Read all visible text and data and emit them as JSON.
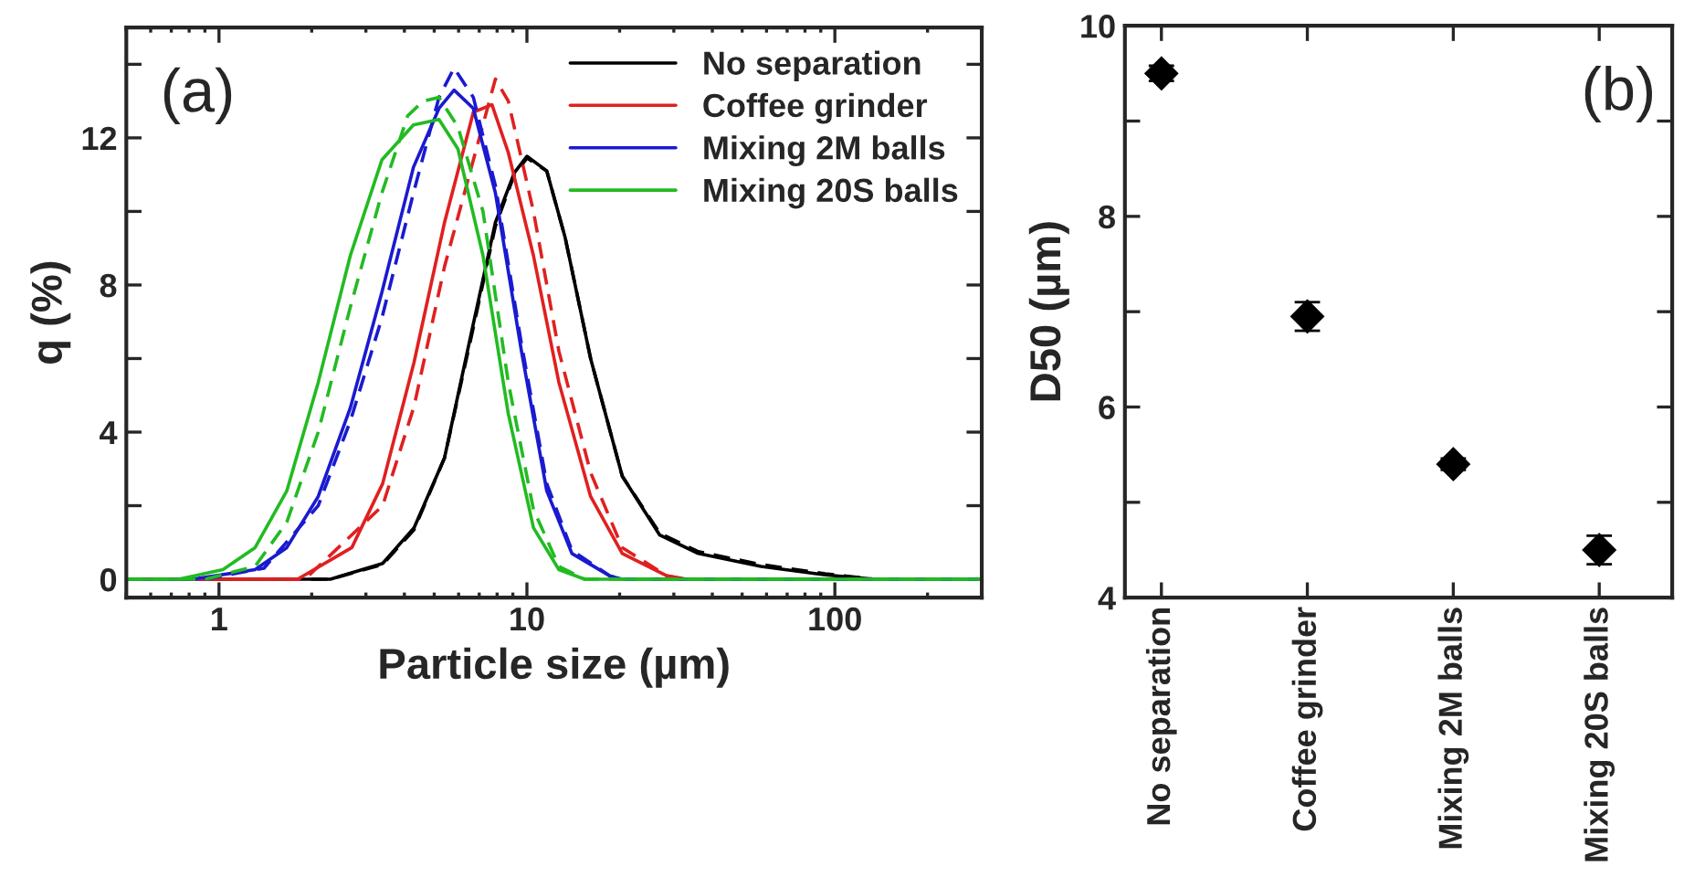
{
  "chart_data": [
    {
      "type": "line",
      "xlabel": "Particle size (µm)",
      "ylabel": "q (%)",
      "log": "x",
      "xlim": [
        0.5,
        300
      ],
      "xticks": [
        1,
        10,
        100
      ],
      "ylim": [
        -0.5,
        15
      ],
      "yticks": [
        0,
        {
          "value": 2,
          "label": null
        },
        4,
        {
          "value": 6,
          "label": null
        },
        8,
        {
          "value": 10,
          "label": null
        },
        12,
        {
          "value": 14,
          "label": null
        }
      ],
      "legend": "top right",
      "annotations": [
        "(a)"
      ],
      "line_style": "solid",
      "series": [
        {
          "name": "No separation",
          "color": "#000000",
          "x": [
            0.5,
            2.3,
            3.4,
            4.3,
            5.4,
            6.6,
            7.9,
            9.1,
            10,
            11.6,
            13.3,
            16.1,
            20.4,
            27,
            36,
            57.6,
            93,
            135,
            300
          ],
          "values": [
            0,
            0,
            0.43,
            1.4,
            3.3,
            6.7,
            9.7,
            11.05,
            11.5,
            11.1,
            9.3,
            6.0,
            2.8,
            1.2,
            0.7,
            0.35,
            0.12,
            0,
            0
          ]
        },
        {
          "color": "#000000",
          "line_style": "dashed",
          "x": [
            0.5,
            2.3,
            3.4,
            4.3,
            5.4,
            6.6,
            7.9,
            9.1,
            10,
            11.6,
            13.3,
            16.1,
            20.4,
            27,
            36,
            57.6,
            93,
            135,
            300
          ],
          "values": [
            0,
            0,
            0.4,
            1.35,
            3.3,
            6.6,
            9.6,
            11.0,
            11.45,
            11.1,
            9.3,
            6.0,
            2.8,
            1.25,
            0.75,
            0.4,
            0.15,
            0,
            0
          ]
        },
        {
          "name": "Coffee grinder",
          "color": "#e02020",
          "x": [
            0.5,
            1.8,
            2.7,
            3.4,
            4.3,
            5.4,
            6.7,
            7.7,
            8.7,
            10.5,
            12.7,
            16.1,
            20.4,
            28.5,
            33,
            300
          ],
          "values": [
            0,
            0,
            0.86,
            2.6,
            5.9,
            9.7,
            12.7,
            12.9,
            11.6,
            8.8,
            5.35,
            2.25,
            0.7,
            0.09,
            0,
            0
          ]
        },
        {
          "color": "#e02020",
          "line_style": "dashed",
          "x": [
            0.5,
            1.9,
            3.4,
            4.3,
            5.4,
            6.7,
            7.9,
            8.7,
            10.5,
            12.7,
            16.1,
            20.4,
            28.5,
            33,
            300
          ],
          "values": [
            0,
            0,
            2.0,
            4.7,
            8.5,
            11.4,
            13.6,
            13.0,
            10.0,
            6.2,
            2.9,
            0.86,
            0.09,
            0,
            0
          ]
        },
        {
          "name": "Mixing 2M balls",
          "color": "#1a1ad0",
          "x": [
            0.5,
            0.82,
            1.31,
            1.66,
            2.1,
            2.67,
            3.38,
            4.28,
            5.18,
            5.8,
            6.7,
            7.9,
            9.6,
            11.6,
            14,
            18.6,
            20.4,
            300
          ],
          "values": [
            0,
            0,
            0.26,
            0.86,
            2.25,
            4.66,
            7.8,
            11.2,
            12.8,
            13.3,
            12.8,
            10.5,
            6.2,
            2.4,
            0.7,
            0.09,
            0,
            0
          ]
        },
        {
          "color": "#1a1ad0",
          "line_style": "dashed",
          "x": [
            0.5,
            0.9,
            1.4,
            2.1,
            2.67,
            3.38,
            4.28,
            5.18,
            5.8,
            6.7,
            7.9,
            9.6,
            11.6,
            14,
            18.6,
            20.4,
            300
          ],
          "values": [
            0,
            0,
            0.3,
            2.0,
            4.3,
            7.1,
            10.5,
            13.1,
            13.9,
            13.1,
            10.7,
            6.4,
            2.6,
            0.78,
            0.09,
            0,
            0
          ]
        },
        {
          "name": "Mixing 20S balls",
          "color": "#22bb22",
          "x": [
            0.5,
            0.74,
            1.03,
            1.31,
            1.66,
            2.1,
            2.67,
            3.38,
            4.28,
            5.18,
            5.97,
            7.2,
            8.7,
            10.5,
            12.7,
            15.4,
            300
          ],
          "values": [
            0,
            0,
            0.26,
            0.86,
            2.4,
            5.35,
            8.8,
            11.4,
            12.35,
            12.5,
            11.7,
            8.8,
            4.5,
            1.4,
            0.26,
            0,
            0
          ]
        },
        {
          "color": "#22bb22",
          "line_style": "dashed",
          "x": [
            0.5,
            0.9,
            1.31,
            1.66,
            2.1,
            2.67,
            3.38,
            4.1,
            4.6,
            5.18,
            5.97,
            7.2,
            8.7,
            10.5,
            12.7,
            15.4,
            300
          ],
          "values": [
            0,
            0,
            0.35,
            1.55,
            4.0,
            7.4,
            10.5,
            12.6,
            13.0,
            13.1,
            12.3,
            10.0,
            5.35,
            1.9,
            0.35,
            0,
            0
          ]
        }
      ]
    },
    {
      "type": "scatter",
      "ylabel": "D50 (µm)",
      "categories": [
        "No separation",
        "Coffee grinder",
        "Mixing 2M balls",
        "Mixing 20S balls"
      ],
      "values": [
        9.5,
        6.95,
        5.4,
        4.5
      ],
      "errors": [
        0.08,
        0.15,
        0.06,
        0.15
      ],
      "color": "#000000",
      "marker": "diamond",
      "ylim": [
        4,
        10
      ],
      "yticks": [
        4,
        {
          "value": 5,
          "label": null
        },
        6,
        {
          "value": 7,
          "label": null
        },
        8,
        {
          "value": 9,
          "label": null
        },
        10
      ],
      "annotations": [
        "(b)"
      ]
    }
  ]
}
